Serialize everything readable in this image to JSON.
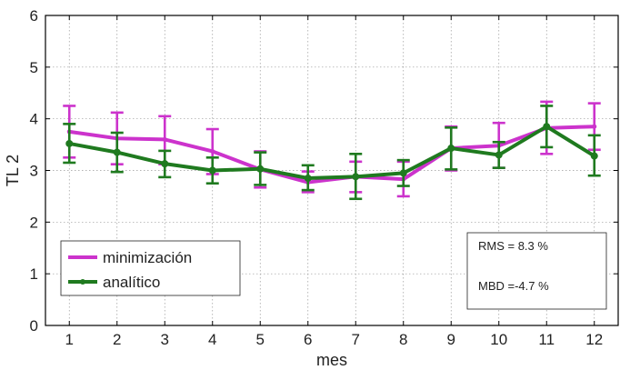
{
  "chart_data": {
    "type": "line",
    "xlabel": "mes",
    "ylabel": "TL 2",
    "xlim": [
      0.5,
      12.5
    ],
    "ylim": [
      0,
      6
    ],
    "x": [
      1,
      2,
      3,
      4,
      5,
      6,
      7,
      8,
      9,
      10,
      11,
      12
    ],
    "xticks": [
      1,
      2,
      3,
      4,
      5,
      6,
      7,
      8,
      9,
      10,
      11,
      12
    ],
    "yticks": [
      0,
      1,
      2,
      3,
      4,
      5,
      6
    ],
    "grid": true,
    "legend_position": "bottom-left",
    "series": [
      {
        "name": "minimización",
        "color": "#cc33cc",
        "values": [
          3.75,
          3.62,
          3.6,
          3.37,
          3.02,
          2.77,
          2.88,
          2.83,
          3.43,
          3.48,
          3.82,
          3.85
        ],
        "error_low": [
          3.25,
          3.12,
          3.12,
          2.93,
          2.67,
          2.58,
          2.58,
          2.5,
          3.0,
          3.05,
          3.32,
          3.4
        ],
        "error_high": [
          4.25,
          4.12,
          4.05,
          3.8,
          3.37,
          2.98,
          3.17,
          3.17,
          3.85,
          3.92,
          4.33,
          4.3
        ]
      },
      {
        "name": "analítico",
        "color": "#1f7a1f",
        "values": [
          3.52,
          3.35,
          3.13,
          3.0,
          3.03,
          2.85,
          2.88,
          2.95,
          3.43,
          3.3,
          3.85,
          3.28
        ],
        "error_low": [
          3.15,
          2.97,
          2.87,
          2.75,
          2.72,
          2.62,
          2.45,
          2.7,
          3.02,
          3.05,
          3.45,
          2.9
        ],
        "error_high": [
          3.9,
          3.73,
          3.38,
          3.25,
          3.35,
          3.1,
          3.32,
          3.2,
          3.83,
          3.55,
          4.25,
          3.68
        ]
      }
    ],
    "annotations": [
      "RMS = 8.3 %",
      "MBD =-4.7 %"
    ]
  }
}
